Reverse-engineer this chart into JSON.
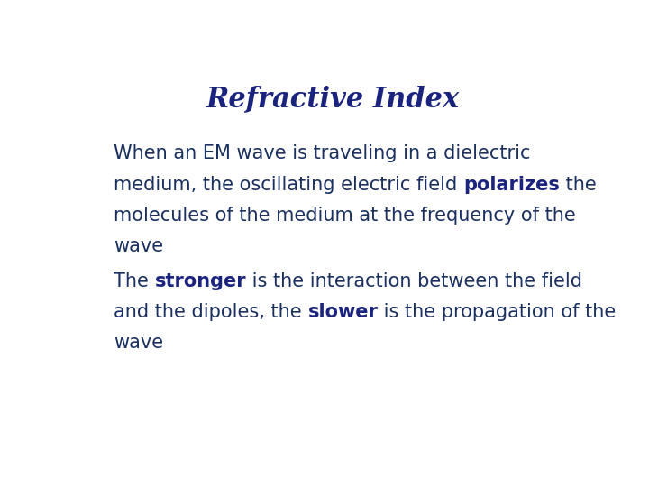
{
  "title": "Refractive Index",
  "title_color": "#1a237e",
  "title_fontsize": 22,
  "body_color": "#1a3060",
  "body_fontsize": 15,
  "highlight_color": "#1a237e",
  "background_color": "#ffffff",
  "paragraph1_lines": [
    [
      {
        "text": "When an EM wave is traveling in a dielectric",
        "bold": false
      }
    ],
    [
      {
        "text": "medium, the oscillating electric field ",
        "bold": false
      },
      {
        "text": "polarizes",
        "bold": true
      },
      {
        "text": " the",
        "bold": false
      }
    ],
    [
      {
        "text": "molecules of the medium at the frequency of the",
        "bold": false
      }
    ],
    [
      {
        "text": "wave",
        "bold": false
      }
    ]
  ],
  "paragraph2_lines": [
    [
      {
        "text": "The ",
        "bold": false
      },
      {
        "text": "stronger",
        "bold": true
      },
      {
        "text": " is the interaction between the field",
        "bold": false
      }
    ],
    [
      {
        "text": "and the dipoles, the ",
        "bold": false
      },
      {
        "text": "slower",
        "bold": true
      },
      {
        "text": " is the propagation of the",
        "bold": false
      }
    ],
    [
      {
        "text": "wave",
        "bold": false
      }
    ]
  ]
}
